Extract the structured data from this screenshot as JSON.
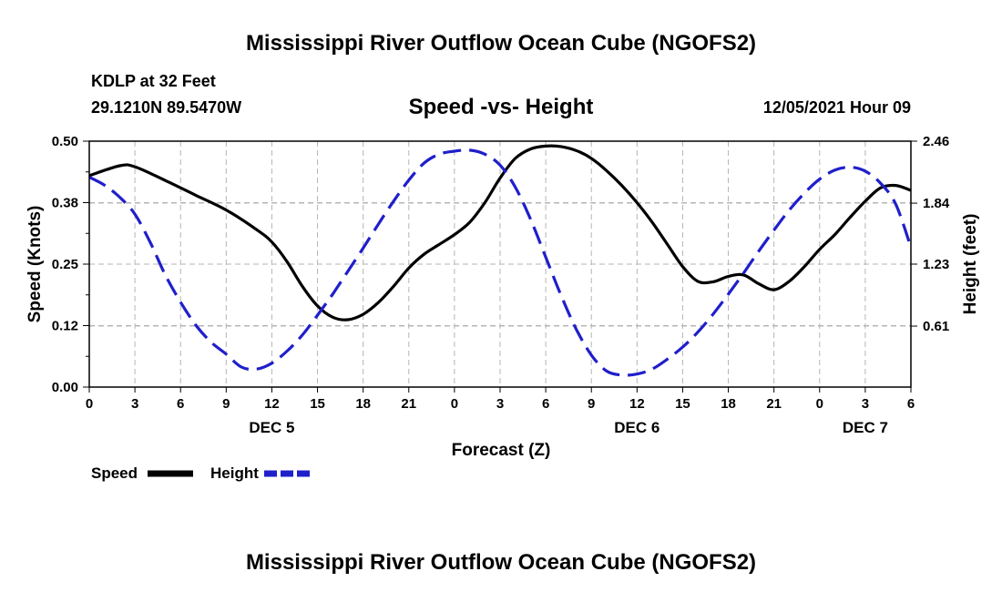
{
  "chart_data": {
    "type": "line",
    "title": "Mississippi River Outflow Ocean Cube (NGOFS2)",
    "footer_title": "Mississippi River Outflow Ocean Cube (NGOFS2)",
    "station": "KDLP at 32 Feet",
    "location": "29.1210N  89.5470W",
    "subtitle": "Speed -vs- Height",
    "timestamp": "12/05/2021 Hour 09",
    "xlabel": "Forecast (Z)",
    "ylabel": "Speed (Knots)",
    "y2label": "Height (feet)",
    "x_range": [
      0,
      54
    ],
    "ylim": [
      0,
      0.5
    ],
    "y2lim": [
      0,
      2.46
    ],
    "x_ticks": [
      0,
      3,
      6,
      9,
      12,
      15,
      18,
      21,
      24,
      27,
      30,
      33,
      36,
      39,
      42,
      45,
      48,
      51,
      54
    ],
    "x_tick_labels": [
      "0",
      "3",
      "6",
      "9",
      "12",
      "15",
      "18",
      "21",
      "0",
      "3",
      "6",
      "9",
      "12",
      "15",
      "18",
      "21",
      "0",
      "3",
      "6"
    ],
    "day_labels": [
      {
        "x": 12,
        "label": "DEC 5"
      },
      {
        "x": 36,
        "label": "DEC 6"
      },
      {
        "x": 51,
        "label": "DEC 7"
      }
    ],
    "y_ticks": [
      0,
      0.125,
      0.25,
      0.375,
      0.5
    ],
    "y_tick_labels": [
      "0.00",
      "0.12",
      "0.25",
      "0.38",
      "0.50"
    ],
    "y2_ticks": [
      0.61,
      1.23,
      1.84,
      2.46
    ],
    "y2_tick_labels": [
      "0.61",
      "1.23",
      "1.84",
      "2.46"
    ],
    "grid": true,
    "legend_position": "bottom-left",
    "series": [
      {
        "name": "Speed",
        "legend_label": "Speed",
        "axis": "left",
        "color": "#000000",
        "dash": "solid",
        "x": [
          0,
          2,
          3,
          5,
          7,
          9,
          11,
          12,
          13,
          14,
          15,
          16,
          17,
          18,
          19,
          20,
          21,
          22,
          23,
          24,
          25,
          26,
          27,
          28,
          29,
          30,
          31,
          32,
          33,
          34,
          35,
          36,
          37,
          38,
          39,
          40,
          41,
          42,
          43,
          44,
          45,
          46,
          47,
          48,
          49,
          50,
          51,
          52,
          53,
          54
        ],
        "values": [
          0.43,
          0.45,
          0.448,
          0.42,
          0.39,
          0.36,
          0.32,
          0.295,
          0.255,
          0.205,
          0.165,
          0.142,
          0.137,
          0.148,
          0.172,
          0.205,
          0.242,
          0.27,
          0.29,
          0.31,
          0.335,
          0.375,
          0.425,
          0.465,
          0.484,
          0.49,
          0.489,
          0.481,
          0.465,
          0.44,
          0.41,
          0.375,
          0.335,
          0.29,
          0.245,
          0.215,
          0.214,
          0.225,
          0.228,
          0.21,
          0.198,
          0.215,
          0.245,
          0.28,
          0.31,
          0.345,
          0.378,
          0.405,
          0.41,
          0.4
        ]
      },
      {
        "name": "Height",
        "legend_label": "Height",
        "axis": "right",
        "color": "#1f1fcc",
        "dash": "dashed",
        "x": [
          0,
          1,
          2,
          3,
          4,
          5,
          6,
          7,
          8,
          9,
          10,
          11,
          12,
          13,
          14,
          15,
          16,
          17,
          18,
          19,
          20,
          21,
          22,
          23,
          24,
          25,
          26,
          27,
          28,
          29,
          30,
          31,
          32,
          33,
          34,
          35,
          36,
          37,
          38,
          39,
          40,
          41,
          42,
          43,
          44,
          45,
          46,
          47,
          48,
          49,
          50,
          51,
          52,
          53,
          54
        ],
        "values": [
          2.1,
          2.02,
          1.9,
          1.73,
          1.45,
          1.12,
          0.85,
          0.62,
          0.45,
          0.33,
          0.2,
          0.18,
          0.24,
          0.36,
          0.52,
          0.72,
          0.93,
          1.16,
          1.39,
          1.63,
          1.86,
          2.07,
          2.24,
          2.33,
          2.36,
          2.37,
          2.33,
          2.22,
          2.0,
          1.68,
          1.3,
          0.92,
          0.58,
          0.32,
          0.16,
          0.12,
          0.13,
          0.18,
          0.28,
          0.4,
          0.55,
          0.73,
          0.93,
          1.14,
          1.36,
          1.57,
          1.77,
          1.94,
          2.08,
          2.17,
          2.2,
          2.16,
          2.04,
          1.83,
          1.4
        ]
      }
    ]
  }
}
